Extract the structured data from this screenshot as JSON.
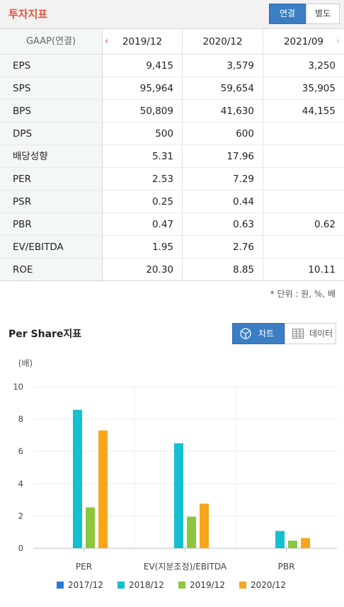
{
  "header": {
    "title": "투자지표",
    "toggle": {
      "consolidated": "연결",
      "separate": "별도"
    }
  },
  "table": {
    "header_label": "GAAP(연결)",
    "prev_arrow": "‹",
    "next_arrow": "›",
    "periods": [
      "2019/12",
      "2020/12",
      "2021/09"
    ],
    "rows": [
      {
        "label": "EPS",
        "values": [
          "9,415",
          "3,579",
          "3,250"
        ]
      },
      {
        "label": "SPS",
        "values": [
          "95,964",
          "59,654",
          "35,905"
        ]
      },
      {
        "label": "BPS",
        "values": [
          "50,809",
          "41,630",
          "44,155"
        ]
      },
      {
        "label": "DPS",
        "values": [
          "500",
          "600",
          ""
        ]
      },
      {
        "label": "배당성향",
        "values": [
          "5.31",
          "17.96",
          ""
        ]
      },
      {
        "label": "PER",
        "values": [
          "2.53",
          "7.29",
          ""
        ]
      },
      {
        "label": "PSR",
        "values": [
          "0.25",
          "0.44",
          ""
        ]
      },
      {
        "label": "PBR",
        "values": [
          "0.47",
          "0.63",
          "0.62"
        ]
      },
      {
        "label": "EV/EBITDA",
        "values": [
          "1.95",
          "2.76",
          ""
        ]
      },
      {
        "label": "ROE",
        "values": [
          "20.30",
          "8.85",
          "10.11"
        ]
      }
    ],
    "unit_note": "* 단위 : 원, %, 배"
  },
  "chart_section": {
    "title": "Per Share지표",
    "toggle": {
      "chart": "차트",
      "data": "데이터"
    }
  },
  "chart_data": {
    "type": "bar",
    "title": "",
    "ylabel": "(배)",
    "xlabel": "",
    "ylim": [
      0,
      10
    ],
    "yticks": [
      0,
      2,
      4,
      6,
      8,
      10
    ],
    "grid": true,
    "legend": "bottom",
    "categories": [
      "PER",
      "EV(지분조정)/EBITDA",
      "PBR"
    ],
    "series": [
      {
        "name": "2017/12",
        "color": "#2a7bd6",
        "values": [
          null,
          null,
          null
        ]
      },
      {
        "name": "2018/12",
        "color": "#14bfcf",
        "values": [
          8.57,
          6.5,
          1.07
        ]
      },
      {
        "name": "2019/12",
        "color": "#8cc63f",
        "values": [
          2.53,
          1.95,
          0.47
        ]
      },
      {
        "name": "2020/12",
        "color": "#f8a51c",
        "values": [
          7.29,
          2.76,
          0.63
        ]
      }
    ]
  }
}
